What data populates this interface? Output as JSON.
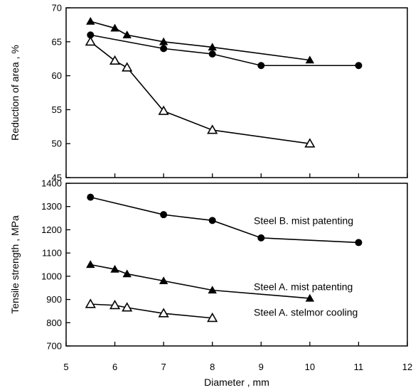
{
  "chart_data": [
    {
      "type": "line",
      "ylabel": "Reduction of area , %",
      "xlim": [
        5,
        12
      ],
      "ylim": [
        45,
        70
      ],
      "yticks": [
        45,
        50,
        55,
        60,
        65,
        70
      ],
      "series": [
        {
          "marker": "filled-triangle",
          "x": [
            5.5,
            6,
            6.25,
            7,
            8,
            10
          ],
          "y": [
            68,
            67,
            66,
            65,
            64.2,
            62.3
          ]
        },
        {
          "marker": "filled-circle",
          "x": [
            5.5,
            7,
            8,
            9,
            11
          ],
          "y": [
            66,
            64,
            63.2,
            61.5,
            61.5
          ]
        },
        {
          "marker": "open-triangle",
          "x": [
            5.5,
            6,
            6.25,
            7,
            8,
            10
          ],
          "y": [
            65,
            62.2,
            61.2,
            54.8,
            52,
            50
          ]
        }
      ]
    },
    {
      "type": "line",
      "xlabel": "Diameter , mm",
      "ylabel": "Tensile strength , MPa",
      "xlim": [
        5,
        12
      ],
      "ylim": [
        700,
        1400
      ],
      "xticks": [
        5,
        6,
        7,
        8,
        9,
        10,
        11,
        12
      ],
      "yticks": [
        700,
        800,
        900,
        1000,
        1100,
        1200,
        1300,
        1400
      ],
      "series": [
        {
          "name": "Steel B. mist patenting",
          "marker": "filled-circle",
          "x": [
            5.5,
            7,
            8,
            9,
            11
          ],
          "y": [
            1340,
            1265,
            1240,
            1165,
            1145
          ]
        },
        {
          "name": "Steel A. mist patenting",
          "marker": "filled-triangle",
          "x": [
            5.5,
            6,
            6.25,
            7,
            8,
            10
          ],
          "y": [
            1050,
            1030,
            1010,
            980,
            940,
            905
          ]
        },
        {
          "name": "Steel A. stelmor cooling",
          "marker": "open-triangle",
          "x": [
            5.5,
            6,
            6.25,
            7,
            8
          ],
          "y": [
            880,
            875,
            865,
            840,
            820
          ]
        }
      ]
    }
  ]
}
